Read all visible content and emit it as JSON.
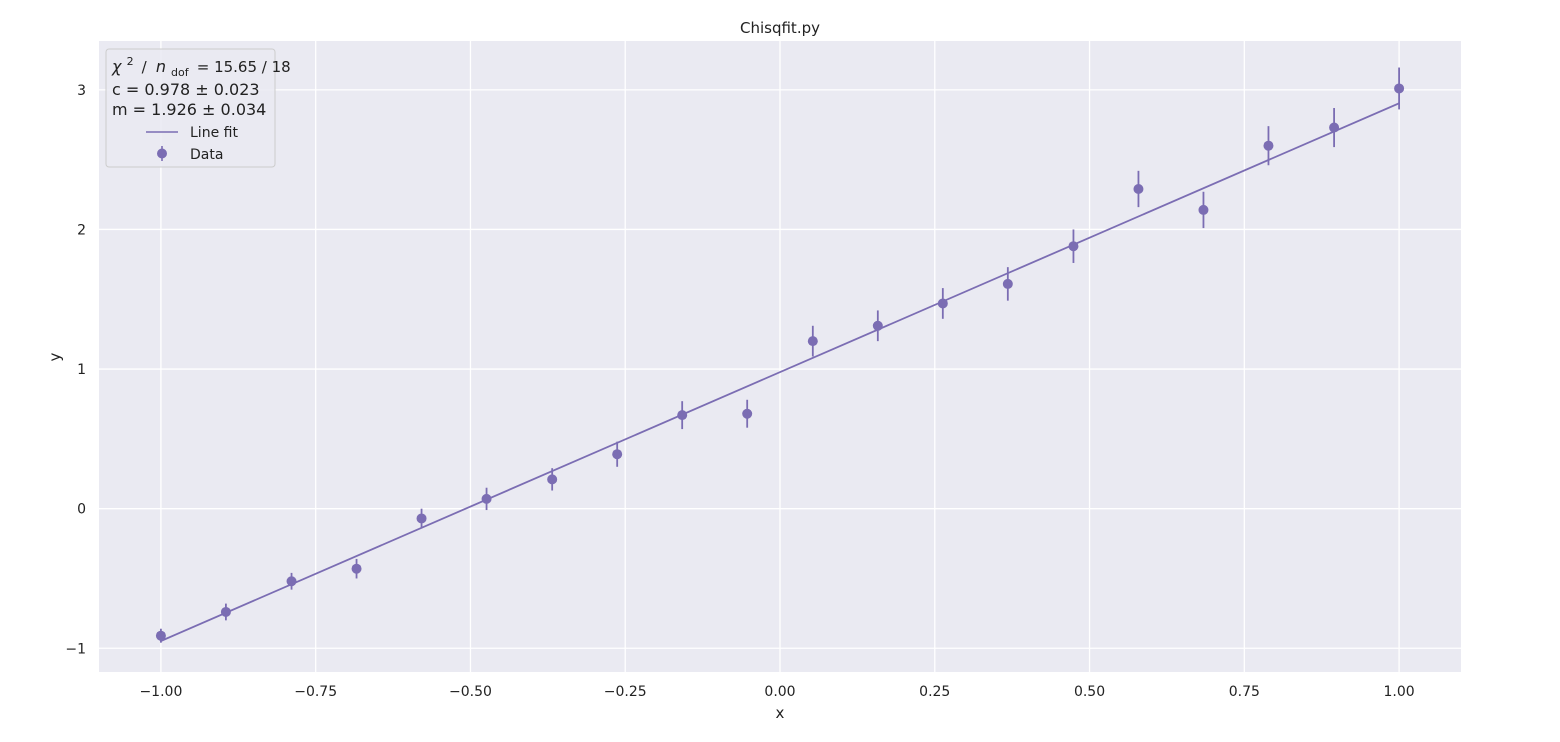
{
  "chart_data": {
    "type": "scatter",
    "title": "Chisqfit.py",
    "xlabel": "x",
    "ylabel": "y",
    "xlim": [
      -1.1,
      1.1
    ],
    "ylim": [
      -1.17,
      3.35
    ],
    "xticks": [
      "−1.00",
      "−0.75",
      "−0.50",
      "−0.25",
      "0.00",
      "0.25",
      "0.50",
      "0.75",
      "1.00"
    ],
    "xtick_values": [
      -1.0,
      -0.75,
      -0.5,
      -0.25,
      0.0,
      0.25,
      0.5,
      0.75,
      1.0
    ],
    "yticks": [
      "−1",
      "0",
      "1",
      "2",
      "3"
    ],
    "ytick_values": [
      -1,
      0,
      1,
      2,
      3
    ],
    "grid": true,
    "legend_placement": "top-left",
    "color": "#7b6db3",
    "background": "#eaeaf2",
    "series": [
      {
        "name": "Data",
        "kind": "errorbar",
        "x": [
          -1.0,
          -0.895,
          -0.789,
          -0.684,
          -0.579,
          -0.474,
          -0.368,
          -0.263,
          -0.158,
          -0.053,
          0.053,
          0.158,
          0.263,
          0.368,
          0.474,
          0.579,
          0.684,
          0.789,
          0.895,
          1.0
        ],
        "y": [
          -0.91,
          -0.74,
          -0.52,
          -0.43,
          -0.07,
          0.07,
          0.21,
          0.39,
          0.67,
          0.68,
          1.2,
          1.31,
          1.47,
          1.61,
          1.88,
          2.29,
          2.14,
          2.6,
          2.73,
          3.01
        ],
        "yerr": [
          0.05,
          0.06,
          0.06,
          0.07,
          0.07,
          0.08,
          0.08,
          0.09,
          0.1,
          0.1,
          0.11,
          0.11,
          0.11,
          0.12,
          0.12,
          0.13,
          0.13,
          0.14,
          0.14,
          0.15
        ]
      },
      {
        "name": "Line fit",
        "kind": "line",
        "x": [
          -1.0,
          1.0
        ],
        "y": [
          -0.948,
          2.904
        ]
      }
    ],
    "legend": {
      "chi2_label": "χ",
      "chi2_sup": "2",
      "ndof_label": "n",
      "ndof_sub": "dof",
      "chi2_value": "= 15.65 / 18",
      "c_line": "c = 0.978 ± 0.023",
      "m_line": "m = 1.926 ± 0.034",
      "entries": [
        "Line fit",
        "Data"
      ]
    }
  }
}
